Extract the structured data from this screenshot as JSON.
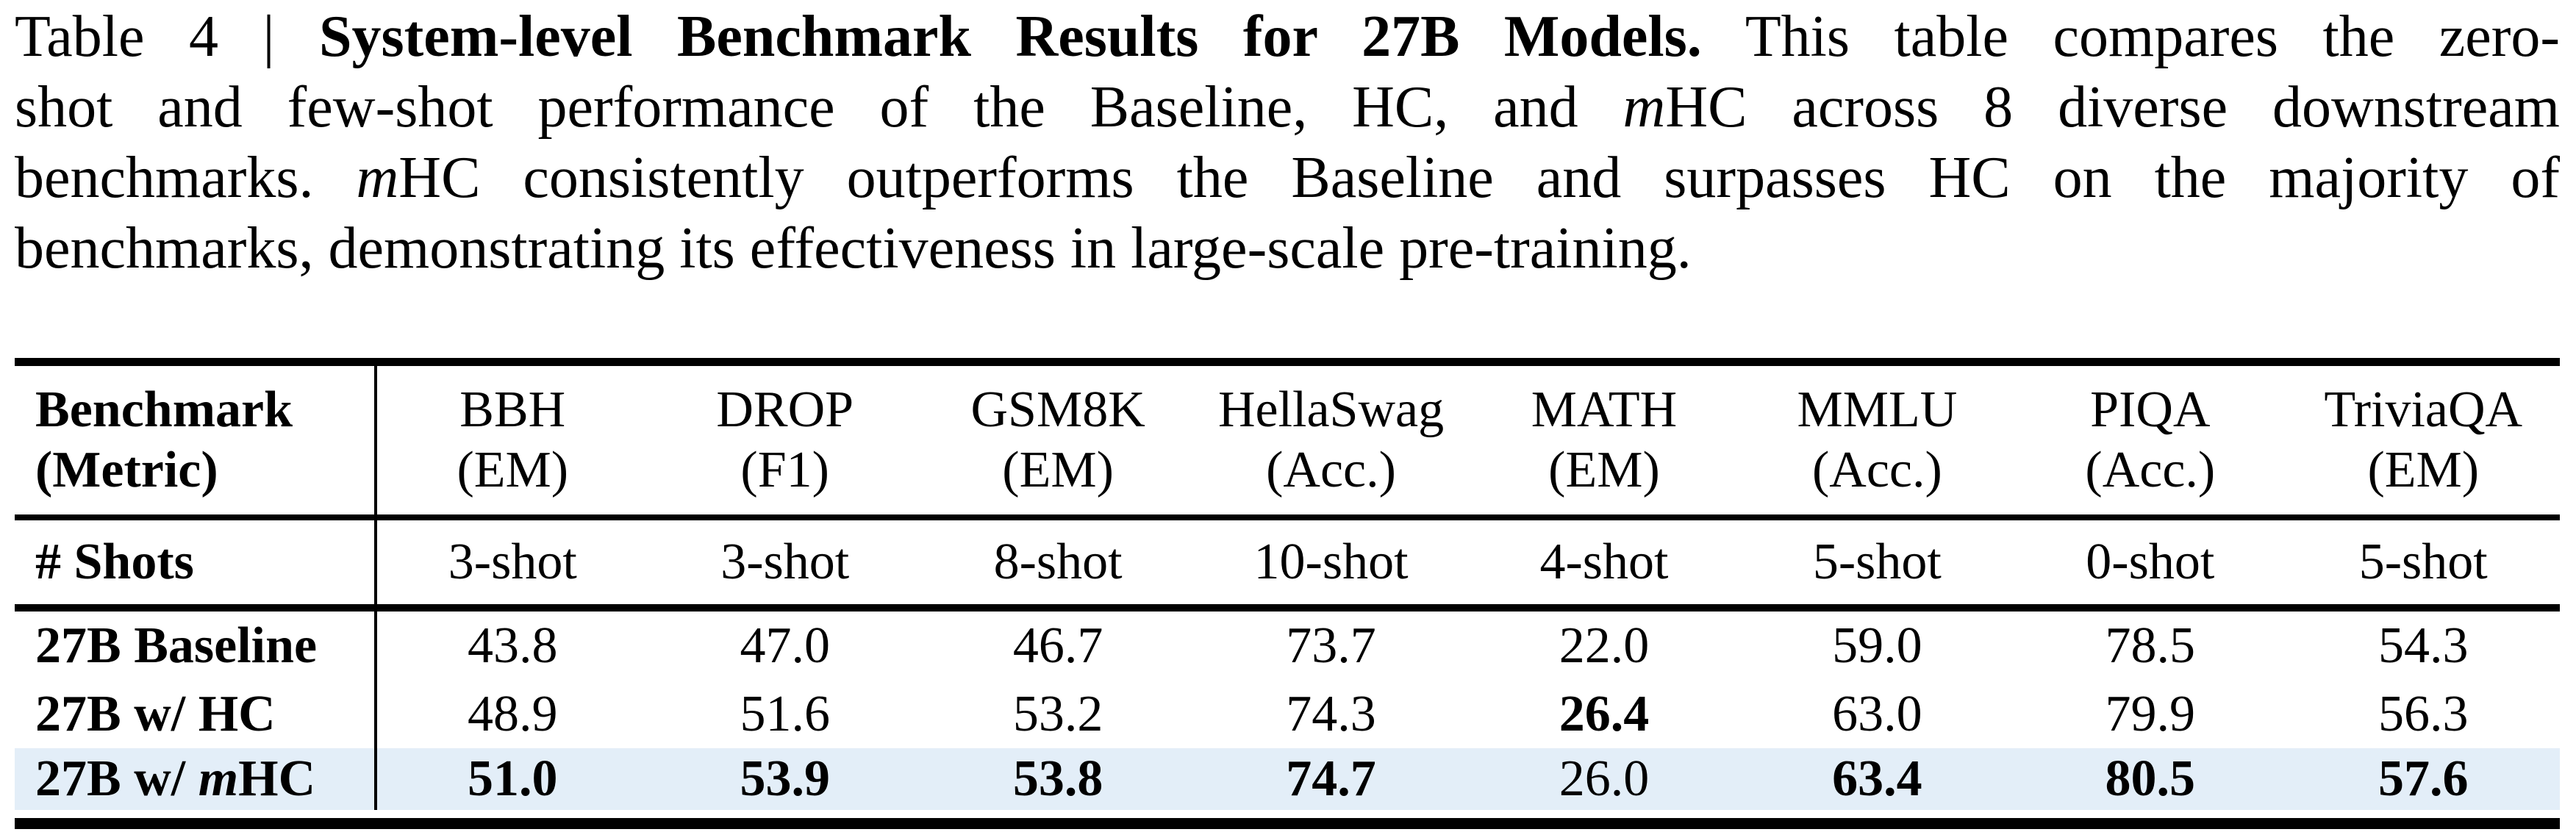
{
  "caption": {
    "line1": {
      "prefix": "Table 4 | ",
      "title": "System-level Benchmark Results for 27B Models.",
      "rest": " This table compares the zero-"
    },
    "line2": {
      "pre": "shot and few-shot performance of the Baseline, HC, and ",
      "m": "m",
      "post": "HC across 8 diverse downstream"
    },
    "line3": {
      "pre": "benchmarks. ",
      "m": "m",
      "post": "HC consistently outperforms the Baseline and surpasses HC on the majority of"
    },
    "line4": {
      "text": "benchmarks, demonstrating its effectiveness in large-scale pre-training."
    }
  },
  "table": {
    "highlight_color": "#E3EEF8",
    "header": {
      "benchmark_label": "Benchmark",
      "metric_label": "(Metric)",
      "columns": [
        {
          "name": "BBH",
          "metric": "(EM)"
        },
        {
          "name": "DROP",
          "metric": "(F1)"
        },
        {
          "name": "GSM8K",
          "metric": "(EM)"
        },
        {
          "name": "HellaSwag",
          "metric": "(Acc.)"
        },
        {
          "name": "MATH",
          "metric": "(EM)"
        },
        {
          "name": "MMLU",
          "metric": "(Acc.)"
        },
        {
          "name": "PIQA",
          "metric": "(Acc.)"
        },
        {
          "name": "TriviaQA",
          "metric": "(EM)"
        }
      ]
    },
    "shots": {
      "label": "# Shots",
      "values": [
        "3-shot",
        "3-shot",
        "8-shot",
        "10-shot",
        "4-shot",
        "5-shot",
        "0-shot",
        "5-shot"
      ]
    },
    "rows": [
      {
        "label": "27B Baseline",
        "values": [
          "43.8",
          "47.0",
          "46.7",
          "73.7",
          "22.0",
          "59.0",
          "78.5",
          "54.3"
        ]
      },
      {
        "label": "27B w/ HC",
        "values": [
          "48.9",
          "51.6",
          "53.2",
          "74.3",
          "26.4",
          "63.0",
          "79.9",
          "56.3"
        ]
      },
      {
        "label_prefix": "27B w/ ",
        "label_italic": "m",
        "label_suffix": "HC",
        "values": [
          "51.0",
          "53.9",
          "53.8",
          "74.7",
          "26.0",
          "63.4",
          "80.5",
          "57.6"
        ]
      }
    ]
  },
  "chart_data": {
    "type": "table",
    "title": "Table 4 | System-level Benchmark Results for 27B Models",
    "categories": [
      "BBH (EM)",
      "DROP (F1)",
      "GSM8K (EM)",
      "HellaSwag (Acc.)",
      "MATH (EM)",
      "MMLU (Acc.)",
      "PIQA (Acc.)",
      "TriviaQA (EM)"
    ],
    "shots": [
      "3-shot",
      "3-shot",
      "8-shot",
      "10-shot",
      "4-shot",
      "5-shot",
      "0-shot",
      "5-shot"
    ],
    "series": [
      {
        "name": "27B Baseline",
        "values": [
          43.8,
          47.0,
          46.7,
          73.7,
          22.0,
          59.0,
          78.5,
          54.3
        ]
      },
      {
        "name": "27B w/ HC",
        "values": [
          48.9,
          51.6,
          53.2,
          74.3,
          26.4,
          63.0,
          79.9,
          56.3
        ]
      },
      {
        "name": "27B w/ mHC",
        "values": [
          51.0,
          53.9,
          53.8,
          74.7,
          26.0,
          63.4,
          80.5,
          57.6
        ]
      }
    ]
  }
}
